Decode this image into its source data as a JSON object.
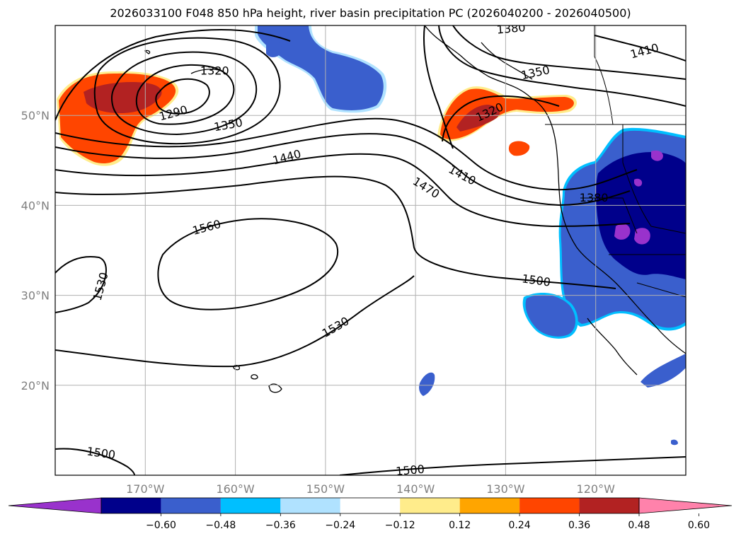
{
  "title": "2026033100 F048 850 hPa height, river basin precipitation PC (2026040200 - 2026040500)",
  "map": {
    "lon_range": [
      -180,
      -110
    ],
    "lat_range": [
      10,
      60
    ],
    "lon_ticks": [
      {
        "value": -170,
        "label": "170°W"
      },
      {
        "value": -160,
        "label": "160°W"
      },
      {
        "value": -150,
        "label": "150°W"
      },
      {
        "value": -140,
        "label": "140°W"
      },
      {
        "value": -130,
        "label": "130°W"
      },
      {
        "value": -120,
        "label": "120°W"
      }
    ],
    "lat_ticks": [
      {
        "value": 20,
        "label": "20°N"
      },
      {
        "value": 30,
        "label": "30°N"
      },
      {
        "value": 40,
        "label": "40°N"
      },
      {
        "value": 50,
        "label": "50°N"
      }
    ],
    "grid": true,
    "contour_variable": "850 hPa height",
    "contour_labels": [
      "1290",
      "1320",
      "1350",
      "1380",
      "1410",
      "1440",
      "1470",
      "1500",
      "1530",
      "1560"
    ],
    "contour_label_instances": [
      {
        "text": "1290",
        "lon": -166.9,
        "lat": 50.3,
        "rot": -15
      },
      {
        "text": "1320",
        "lon": -162.3,
        "lat": 55.0,
        "rot": 0
      },
      {
        "text": "1350",
        "lon": -160.8,
        "lat": 49.0,
        "rot": -10
      },
      {
        "text": "1440",
        "lon": -154.3,
        "lat": 45.4,
        "rot": -15
      },
      {
        "text": "1410",
        "lon": -134.8,
        "lat": 43.4,
        "rot": 28
      },
      {
        "text": "1470",
        "lon": -138.8,
        "lat": 42.0,
        "rot": 32
      },
      {
        "text": "1560",
        "lon": -163.2,
        "lat": 37.6,
        "rot": -15
      },
      {
        "text": "1530",
        "lon": -175.0,
        "lat": 31.0,
        "rot": -75
      },
      {
        "text": "1530",
        "lon": -148.9,
        "lat": 26.5,
        "rot": -30
      },
      {
        "text": "1500",
        "lon": -174.9,
        "lat": 12.5,
        "rot": 8
      },
      {
        "text": "1500",
        "lon": -140.6,
        "lat": 10.6,
        "rot": -5
      },
      {
        "text": "1500",
        "lon": -126.6,
        "lat": 31.7,
        "rot": 8
      },
      {
        "text": "1380",
        "lon": -120.2,
        "lat": 40.9,
        "rot": 0
      },
      {
        "text": "1320",
        "lon": -131.8,
        "lat": 50.4,
        "rot": -25
      },
      {
        "text": "1350",
        "lon": -126.7,
        "lat": 54.8,
        "rot": -12
      },
      {
        "text": "1410",
        "lon": -114.6,
        "lat": 57.2,
        "rot": -15
      },
      {
        "text": "1380",
        "lon": -129.4,
        "lat": 59.7,
        "rot": -5
      }
    ]
  },
  "colorbar": {
    "tick_labels": [
      "−0.60",
      "−0.48",
      "−0.36",
      "−0.24",
      "−0.12",
      "0.12",
      "0.24",
      "0.36",
      "0.48",
      "0.60"
    ],
    "colors": [
      "#9932cc",
      "#00008b",
      "#3a5fcd",
      "#00bfff",
      "#b0e2ff",
      "#ffffff",
      "#ffec8b",
      "#ffa500",
      "#ff4500",
      "#b22222",
      "#ff82ab"
    ]
  }
}
